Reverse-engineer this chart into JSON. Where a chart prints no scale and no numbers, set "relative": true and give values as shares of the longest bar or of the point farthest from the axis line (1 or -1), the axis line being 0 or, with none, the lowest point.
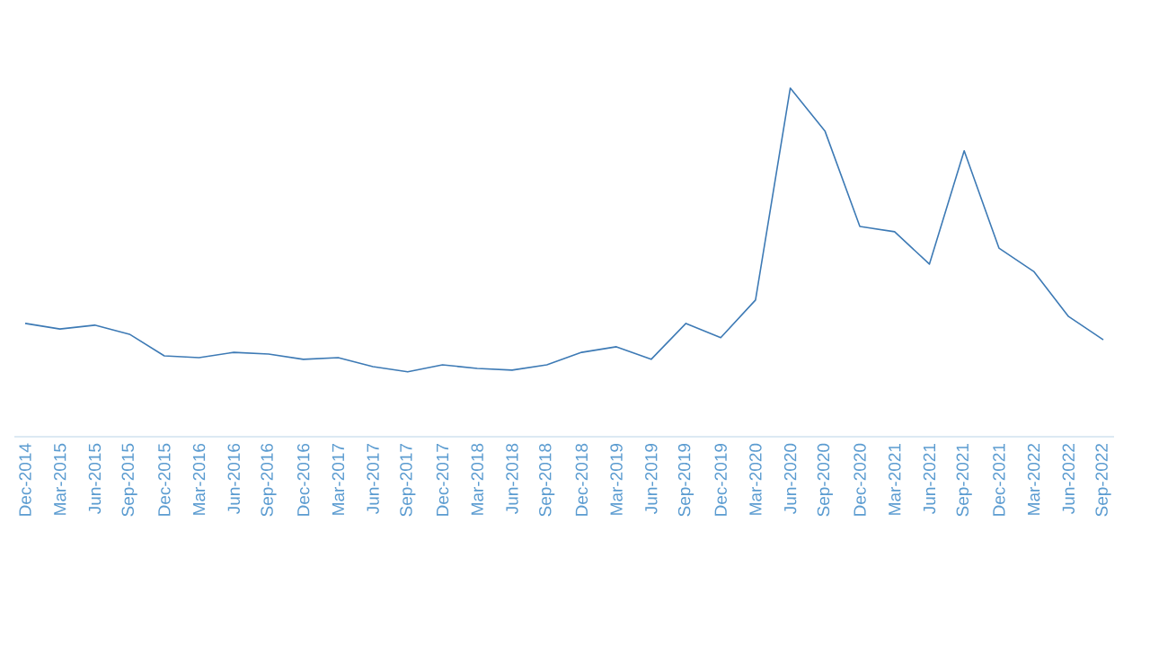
{
  "chart_data": {
    "type": "line",
    "relative": true,
    "color": "#3d7ab5",
    "categories": [
      "Dec-2014",
      "Mar-2015",
      "Jun-2015",
      "Sep-2015",
      "Dec-2015",
      "Mar-2016",
      "Jun-2016",
      "Sep-2016",
      "Dec-2016",
      "Mar-2017",
      "Jun-2017",
      "Sep-2017",
      "Dec-2017",
      "Mar-2018",
      "Jun-2018",
      "Sep-2018",
      "Dec-2018",
      "Mar-2019",
      "Jun-2019",
      "Sep-2019",
      "Dec-2019",
      "Mar-2020",
      "Jun-2020",
      "Sep-2020",
      "Dec-2020",
      "Mar-2021",
      "Jun-2021",
      "Sep-2021",
      "Dec-2021",
      "Mar-2022",
      "Jun-2022",
      "Sep-2022"
    ],
    "values": [
      0.325,
      0.309,
      0.32,
      0.294,
      0.232,
      0.227,
      0.242,
      0.237,
      0.222,
      0.227,
      0.201,
      0.186,
      0.206,
      0.196,
      0.191,
      0.206,
      0.242,
      0.258,
      0.222,
      0.325,
      0.284,
      0.392,
      1,
      0.876,
      0.603,
      0.588,
      0.495,
      0.82,
      0.541,
      0.474,
      0.345,
      0.278
    ]
  }
}
